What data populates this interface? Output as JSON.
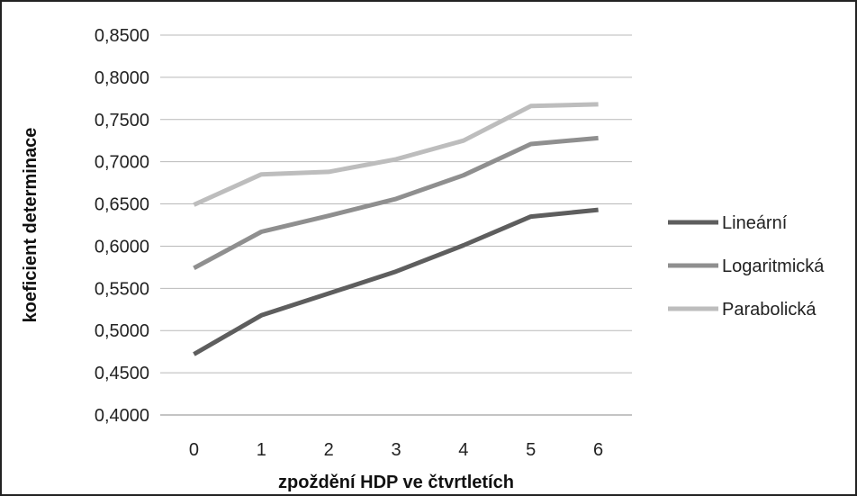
{
  "chart_data": {
    "type": "line",
    "title": "",
    "xlabel": "zpoždění HDP ve čtvrtletích",
    "ylabel": "koeficient determinace",
    "x": [
      0,
      1,
      2,
      3,
      4,
      5,
      6
    ],
    "x_tick_labels": [
      "0",
      "1",
      "2",
      "3",
      "4",
      "5",
      "6"
    ],
    "y_tick_labels": [
      "0,4000",
      "0,4500",
      "0,5000",
      "0,5500",
      "0,6000",
      "0,6500",
      "0,7000",
      "0,7500",
      "0,8000",
      "0,8500"
    ],
    "y_ticks": [
      0.4,
      0.45,
      0.5,
      0.55,
      0.6,
      0.65,
      0.7,
      0.75,
      0.8,
      0.85
    ],
    "ylim": [
      0.4,
      0.85
    ],
    "grid": "horizontal",
    "legend_position": "right",
    "series": [
      {
        "name": "Lineární",
        "color": "#5e5e5e",
        "values": [
          0.472,
          0.518,
          0.544,
          0.57,
          0.601,
          0.635,
          0.643
        ]
      },
      {
        "name": "Logaritmická",
        "color": "#8f8f8f",
        "values": [
          0.574,
          0.617,
          0.636,
          0.656,
          0.684,
          0.721,
          0.728
        ]
      },
      {
        "name": "Parabolická",
        "color": "#bdbdbd",
        "values": [
          0.649,
          0.685,
          0.688,
          0.703,
          0.725,
          0.766,
          0.768
        ]
      }
    ]
  }
}
